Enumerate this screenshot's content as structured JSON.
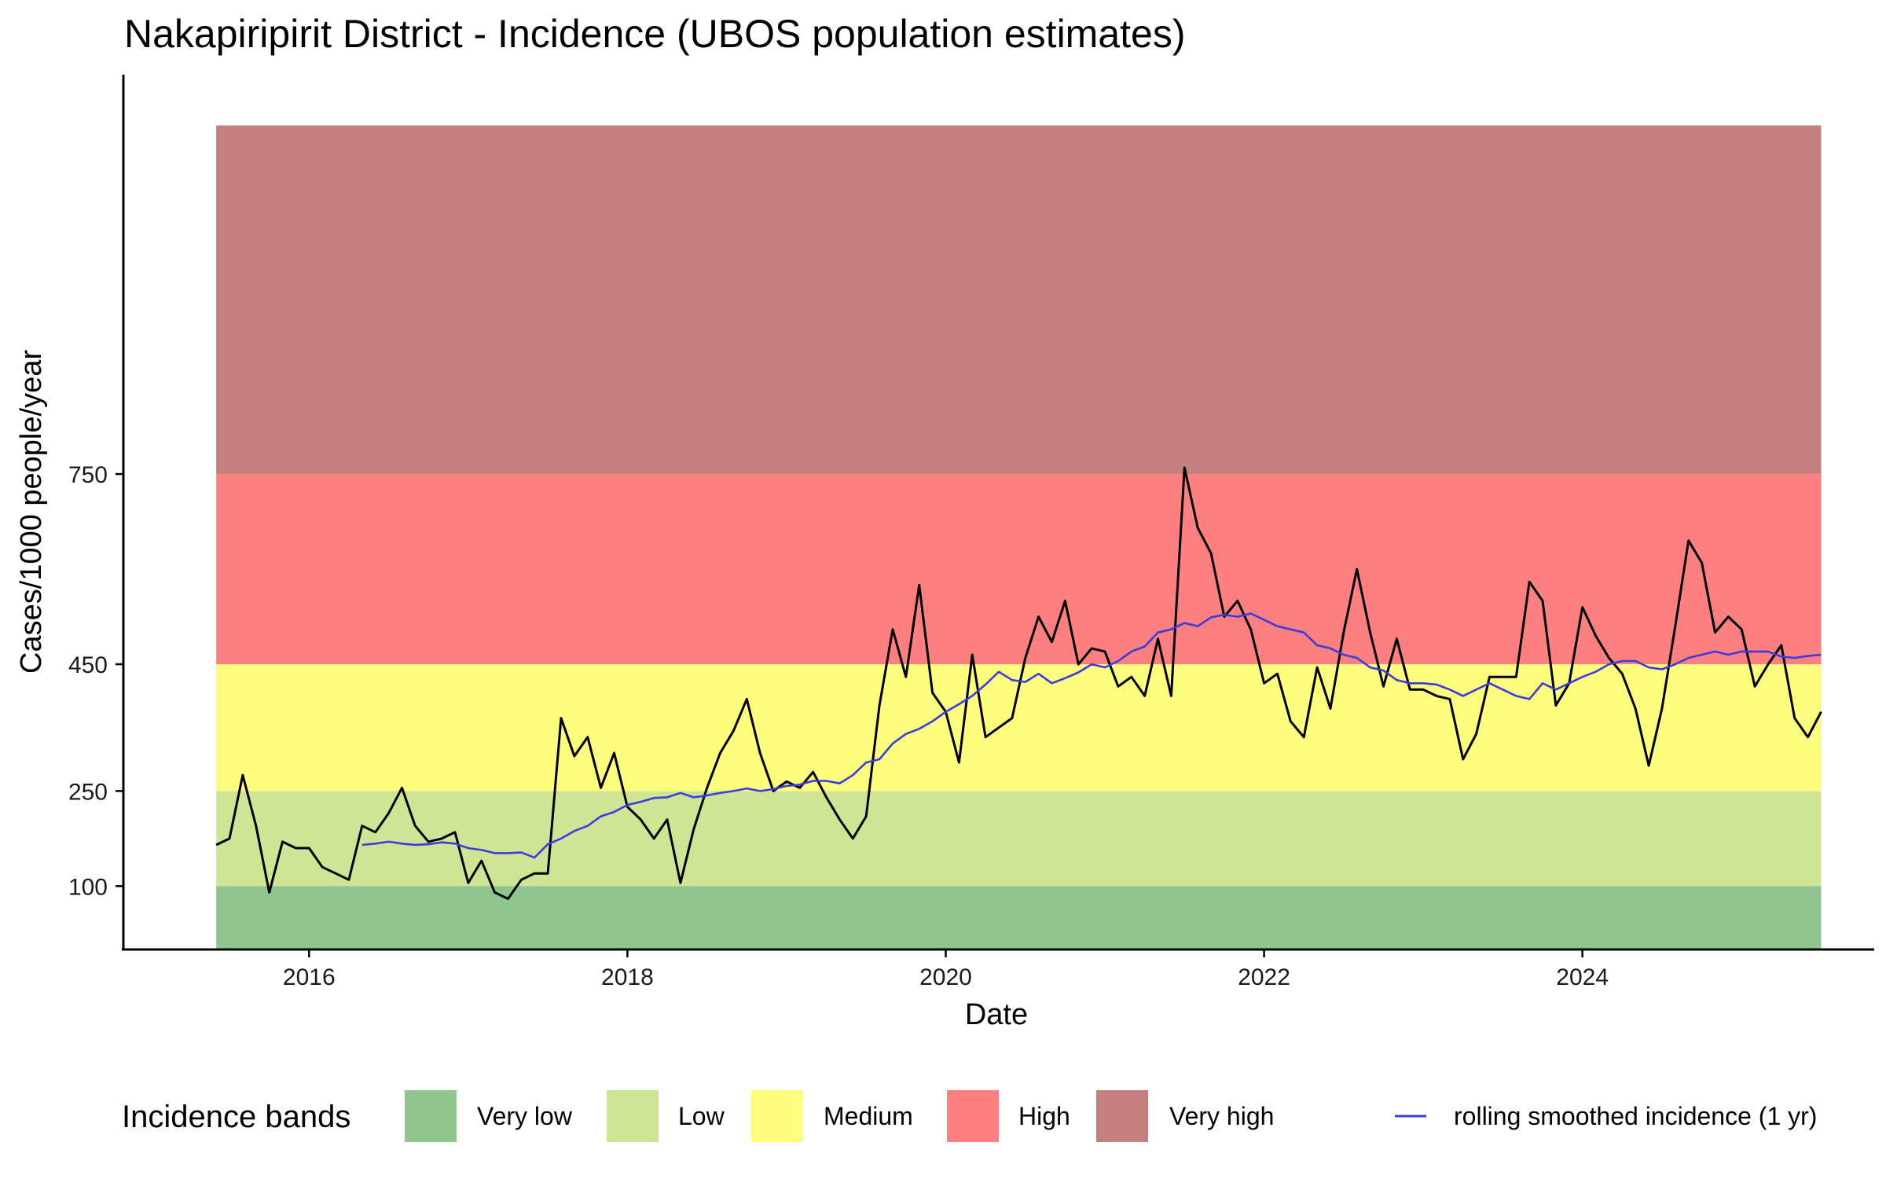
{
  "chart_data": {
    "type": "line",
    "title": "Nakapiripirit District - Incidence (UBOS population estimates)",
    "xlabel": "Date",
    "ylabel": "Cases/1000 people/year",
    "x_ticks": [
      "2016",
      "2018",
      "2020",
      "2022",
      "2024"
    ],
    "y_ticks": [
      100,
      250,
      450,
      750
    ],
    "x_range": [
      "2014-11-01",
      "2025-11-01"
    ],
    "ylim": [
      0,
      1380
    ],
    "grid": false,
    "legend_position": "bottom",
    "bands": {
      "title": "Incidence bands",
      "items": [
        {
          "label": "Very low",
          "from": 0,
          "to": 100,
          "color": "#8fc58f"
        },
        {
          "label": "Low",
          "from": 100,
          "to": 250,
          "color": "#cde595"
        },
        {
          "label": "Medium",
          "from": 250,
          "to": 450,
          "color": "#fdfd7e"
        },
        {
          "label": "High",
          "from": 450,
          "to": 750,
          "color": "#fe7f7f"
        },
        {
          "label": "Very high",
          "from": 750,
          "to": 1300,
          "color": "#c47f7f"
        }
      ]
    },
    "series": [
      {
        "kind": "monthly",
        "color": "#000000",
        "start": "2015-06",
        "values": [
          165,
          175,
          275,
          195,
          90,
          170,
          160,
          160,
          130,
          120,
          110,
          195,
          185,
          215,
          255,
          195,
          170,
          175,
          185,
          105,
          140,
          90,
          80,
          110,
          120,
          120,
          365,
          305,
          335,
          255,
          310,
          225,
          205,
          175,
          205,
          105,
          190,
          255,
          310,
          345,
          395,
          310,
          250,
          265,
          255,
          280,
          240,
          205,
          175,
          210,
          385,
          505,
          430,
          575,
          405,
          375,
          295,
          465,
          335,
          350,
          365,
          460,
          525,
          485,
          550,
          450,
          475,
          470,
          415,
          430,
          400,
          490,
          400,
          760,
          665,
          625,
          525,
          550,
          505,
          420,
          435,
          360,
          335,
          445,
          380,
          500,
          600,
          500,
          415,
          490,
          410,
          410,
          400,
          395,
          300,
          340,
          430,
          430,
          430,
          580,
          550,
          385,
          420,
          540,
          495,
          460,
          435,
          380,
          290,
          380,
          510,
          645,
          610,
          500,
          525,
          505,
          415,
          450,
          480,
          365,
          335,
          375
        ],
        "name": ""
      },
      {
        "kind": "monthly",
        "color": "#3c3cdc",
        "start": "2016-05",
        "name": "rolling smoothed incidence (1 yr)",
        "values": [
          165,
          167,
          170,
          167,
          165,
          166,
          169,
          167,
          160,
          157,
          152,
          152,
          153,
          145,
          166,
          175,
          187,
          195,
          210,
          217,
          228,
          233,
          239,
          240,
          247,
          240,
          243,
          247,
          250,
          254,
          250,
          253,
          258,
          260,
          266,
          266,
          262,
          275,
          295,
          300,
          325,
          340,
          348,
          360,
          375,
          387,
          400,
          418,
          438,
          425,
          422,
          435,
          420,
          428,
          437,
          450,
          445,
          455,
          470,
          478,
          500,
          505,
          515,
          510,
          524,
          528,
          525,
          530,
          520,
          510,
          505,
          500,
          480,
          475,
          465,
          460,
          445,
          440,
          425,
          420,
          420,
          418,
          410,
          400,
          410,
          420,
          410,
          400,
          395,
          420,
          410,
          420,
          430,
          438,
          450,
          455,
          455,
          445,
          442,
          450,
          460,
          465,
          470,
          465,
          470,
          470,
          470,
          462,
          460,
          463,
          465
        ]
      }
    ]
  }
}
